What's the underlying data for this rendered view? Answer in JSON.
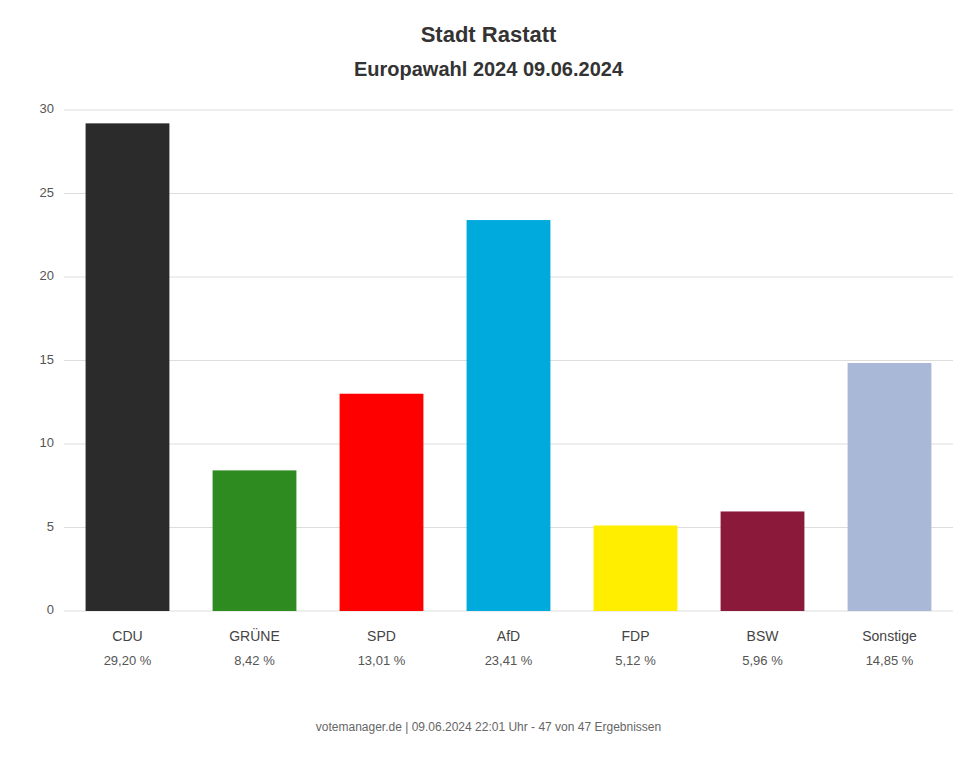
{
  "chart_data": {
    "type": "bar",
    "title": "Stadt Rastatt",
    "subtitle": "Europawahl 2024 09.06.2024",
    "categories": [
      "CDU",
      "GRÜNE",
      "SPD",
      "AfD",
      "FDP",
      "BSW",
      "Sonstige"
    ],
    "values": [
      29.2,
      8.42,
      13.01,
      23.41,
      5.12,
      5.96,
      14.85
    ],
    "value_labels": [
      "29,20 %",
      "8,42 %",
      "13,01 %",
      "23,41 %",
      "5,12 %",
      "5,96 %",
      "14,85 %"
    ],
    "data_labels": true,
    "colors": [
      "#2b2b2b",
      "#2e8b20",
      "#ff0000",
      "#00aadd",
      "#ffee00",
      "#8b1a3a",
      "#aab8d8"
    ],
    "ylim": [
      0,
      30
    ],
    "yticks": [
      0,
      5,
      10,
      15,
      20,
      25,
      30
    ],
    "grid": true,
    "annotations": [
      "votemanager.de | 09.06.2024 22:01 Uhr - 47 von 47 Ergebnissen"
    ]
  }
}
